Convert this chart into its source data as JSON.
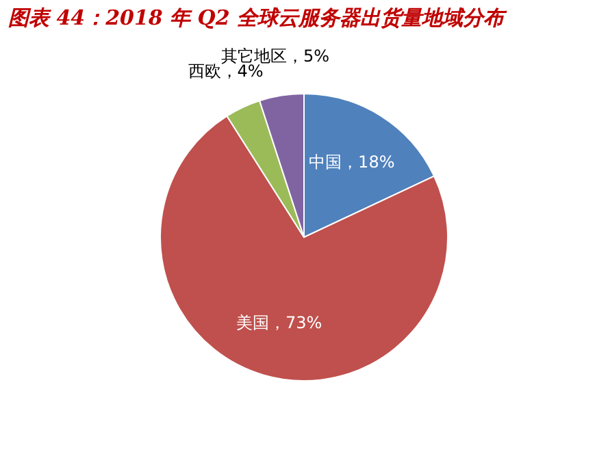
{
  "chart_data": {
    "type": "pie",
    "title": "图表 44：2018 年 Q2 全球云服务器出货量地域分布",
    "categories": [
      "中国",
      "美国",
      "西欧",
      "其它地区"
    ],
    "values": [
      18,
      73,
      4,
      5
    ],
    "value_labels": [
      "18%",
      "73%",
      "4%",
      "5%"
    ],
    "colors": [
      "#4f81bd",
      "#c0504d",
      "#9bbb59",
      "#8064a2"
    ]
  }
}
